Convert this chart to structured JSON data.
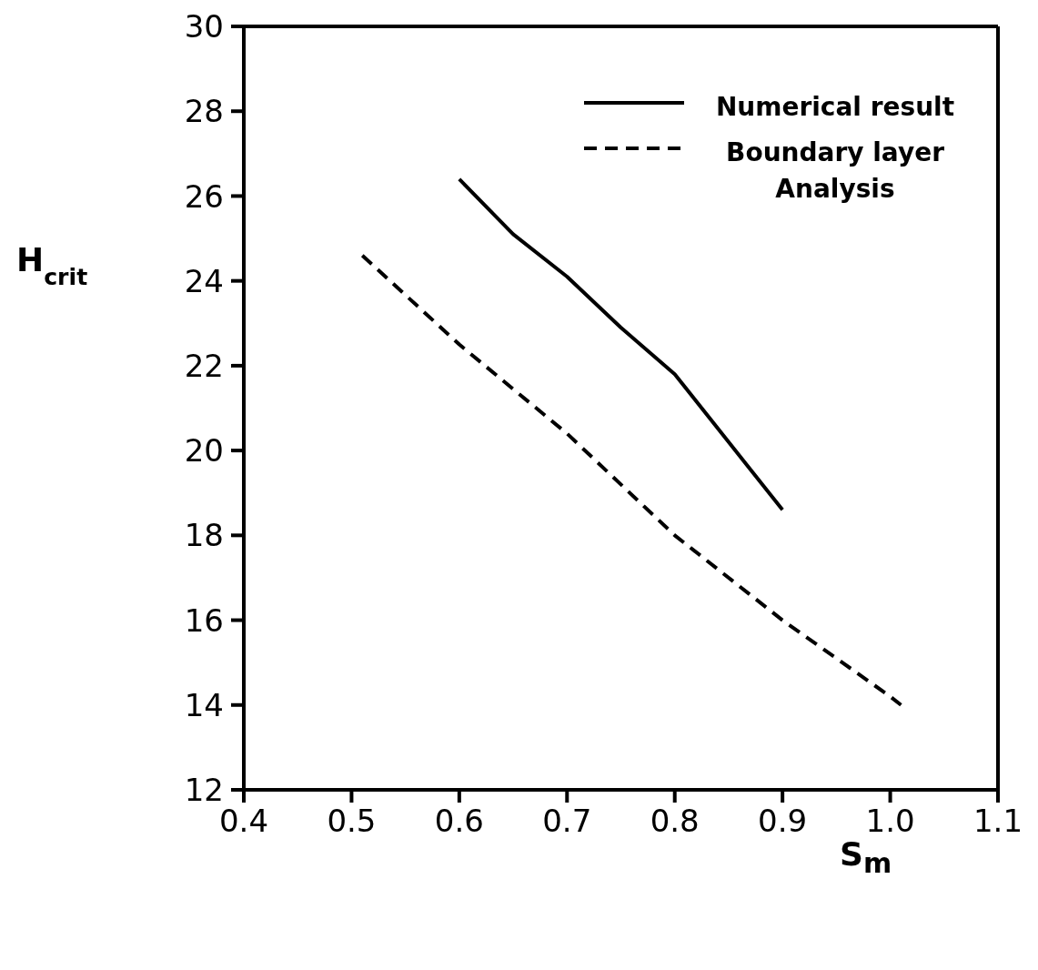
{
  "chart_data": {
    "type": "line",
    "xlabel": "S$_{m}$",
    "ylabel": "H$_{crit}$",
    "xlim": [
      0.4,
      1.1
    ],
    "xticks": [
      0.4,
      0.5,
      0.6,
      0.7,
      0.8,
      0.9,
      {
        "value": 1.0,
        "label": "1.0"
      },
      1.1
    ],
    "ylim": [
      12,
      30
    ],
    "yticks": [
      12,
      14,
      16,
      18,
      20,
      22,
      24,
      26,
      28,
      30
    ],
    "legend": "top right",
    "marker": "none",
    "series": [
      {
        "name": "Numerical result",
        "color": "#000000",
        "line_style": "solid",
        "x": [
          0.6,
          0.65,
          0.7,
          0.75,
          0.8,
          0.85,
          0.9
        ],
        "values": [
          26.4,
          25.1,
          24.1,
          22.9,
          21.8,
          20.2,
          18.6
        ]
      },
      {
        "name": "Boundary layer Analysis",
        "color": "#000000",
        "line_style": "dashed",
        "x": [
          0.51,
          0.6,
          0.7,
          0.8,
          0.9,
          1.0,
          1.01
        ],
        "values": [
          24.6,
          22.5,
          20.4,
          18.0,
          16.0,
          14.2,
          14.0
        ]
      }
    ]
  }
}
